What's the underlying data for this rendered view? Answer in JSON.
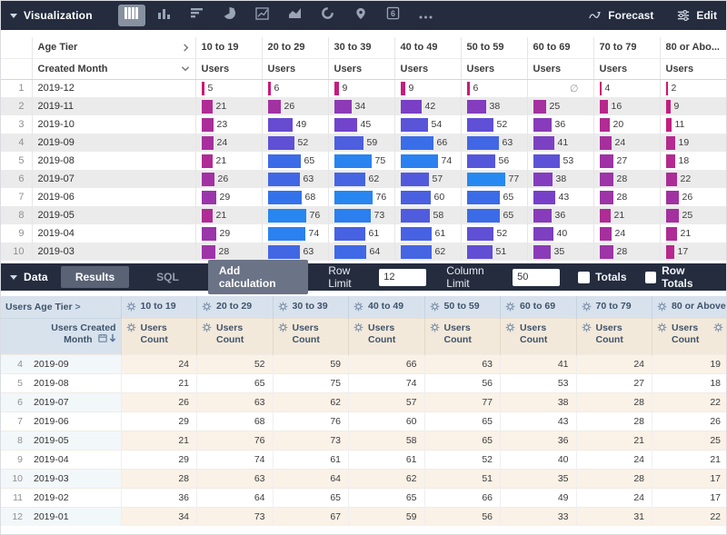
{
  "viz_toolbar": {
    "title": "Visualization",
    "icons": [
      "table",
      "column-chart",
      "bar-chart",
      "pie-chart",
      "line-chart",
      "area-chart",
      "donut-chart",
      "map-pin",
      "single-value",
      "more-options"
    ],
    "selected_icon_index": 0,
    "single_value_glyph": "6",
    "forecast_label": "Forecast",
    "edit_label": "Edit"
  },
  "viz_table": {
    "pivot_label": "Age Tier",
    "dimension_label": "Created Month",
    "measure_label": "Users",
    "columns": [
      "10 to 19",
      "20 to 29",
      "30 to 39",
      "40 to 49",
      "50 to 59",
      "60 to 69",
      "70 to 79",
      "80 or Abo..."
    ],
    "null_symbol": "∅",
    "rows": [
      {
        "num": 1,
        "month": "2019-12",
        "values": [
          5,
          6,
          9,
          9,
          6,
          null,
          4,
          2
        ]
      },
      {
        "num": 2,
        "month": "2019-11",
        "values": [
          21,
          26,
          34,
          42,
          38,
          25,
          16,
          9
        ]
      },
      {
        "num": 3,
        "month": "2019-10",
        "values": [
          23,
          49,
          45,
          54,
          52,
          36,
          20,
          11
        ]
      },
      {
        "num": 4,
        "month": "2019-09",
        "values": [
          24,
          52,
          59,
          66,
          63,
          41,
          24,
          19
        ]
      },
      {
        "num": 5,
        "month": "2019-08",
        "values": [
          21,
          65,
          75,
          74,
          56,
          53,
          27,
          18
        ]
      },
      {
        "num": 6,
        "month": "2019-07",
        "values": [
          26,
          63,
          62,
          57,
          77,
          38,
          28,
          22
        ]
      },
      {
        "num": 7,
        "month": "2019-06",
        "values": [
          29,
          68,
          76,
          60,
          65,
          43,
          28,
          26
        ]
      },
      {
        "num": 8,
        "month": "2019-05",
        "values": [
          21,
          76,
          73,
          58,
          65,
          36,
          21,
          25
        ]
      },
      {
        "num": 9,
        "month": "2019-04",
        "values": [
          29,
          74,
          61,
          61,
          52,
          40,
          24,
          21
        ]
      },
      {
        "num": 10,
        "month": "2019-03",
        "values": [
          28,
          63,
          64,
          62,
          51,
          35,
          28,
          17
        ]
      }
    ]
  },
  "data_toolbar": {
    "title": "Data",
    "tabs": [
      "Results",
      "SQL"
    ],
    "add_calculation_label": "Add calculation",
    "row_limit_label": "Row Limit",
    "row_limit_value": "12",
    "column_limit_label": "Column Limit",
    "column_limit_value": "50",
    "totals_label": "Totals",
    "row_totals_label": "Row Totals"
  },
  "data_table": {
    "pivot_header": "Users Age Tier",
    "pivot_expand_glyph": ">",
    "dimension_header_line1": "Users Created",
    "dimension_header_line2": "Month",
    "measure_header_line1": "Users",
    "measure_header_line2": "Count",
    "columns": [
      "10 to 19",
      "20 to 29",
      "30 to 39",
      "40 to 49",
      "50 to 59",
      "60 to 69",
      "70 to 79",
      "80 or Above"
    ],
    "rows": [
      {
        "num": 4,
        "month": "2019-09",
        "values": [
          24,
          52,
          59,
          66,
          63,
          41,
          24,
          19
        ]
      },
      {
        "num": 5,
        "month": "2019-08",
        "values": [
          21,
          65,
          75,
          74,
          56,
          53,
          27,
          18
        ]
      },
      {
        "num": 6,
        "month": "2019-07",
        "values": [
          26,
          63,
          62,
          57,
          77,
          38,
          28,
          22
        ]
      },
      {
        "num": 7,
        "month": "2019-06",
        "values": [
          29,
          68,
          76,
          60,
          65,
          43,
          28,
          26
        ]
      },
      {
        "num": 8,
        "month": "2019-05",
        "values": [
          21,
          76,
          73,
          58,
          65,
          36,
          21,
          25
        ]
      },
      {
        "num": 9,
        "month": "2019-04",
        "values": [
          29,
          74,
          61,
          61,
          52,
          40,
          24,
          21
        ]
      },
      {
        "num": 10,
        "month": "2019-03",
        "values": [
          28,
          63,
          64,
          62,
          51,
          35,
          28,
          17
        ]
      },
      {
        "num": 11,
        "month": "2019-02",
        "values": [
          36,
          64,
          65,
          65,
          66,
          49,
          24,
          17
        ]
      },
      {
        "num": 12,
        "month": "2019-01",
        "values": [
          34,
          73,
          67,
          59,
          56,
          33,
          31,
          22
        ]
      }
    ]
  },
  "colors": {
    "toolbar_bg": "#242c3e",
    "pivot_header_bg": "#d8e2ed",
    "measure_header_bg": "#f3e9da",
    "bar_gradient_low": "#d1136b",
    "bar_gradient_mid": "#7442c9",
    "bar_gradient_high": "#2190f3"
  }
}
